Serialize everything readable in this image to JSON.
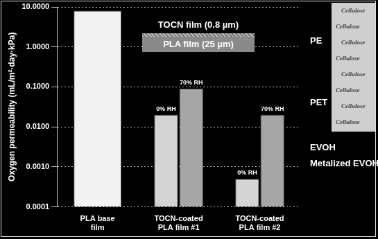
{
  "chart_data": {
    "type": "bar",
    "y_label": "Oxygen permeability (mL/m²·day·kPa)",
    "categories": [
      [
        "PLA base",
        "film"
      ],
      [
        "TOCN-coated",
        "PLA film #1"
      ],
      [
        "TOCN-coated",
        "PLA film #2"
      ]
    ],
    "series": [
      {
        "color": "#f2f2f2",
        "values": [
          8,
          null,
          null
        ]
      },
      {
        "name": "0% RH",
        "color": "#d4d4d4",
        "values": [
          null,
          0.02,
          0.0005
        ]
      },
      {
        "name": "70% RH",
        "color": "#a6a6a6",
        "values": [
          null,
          0.09,
          0.02
        ]
      }
    ],
    "log": "y",
    "ylim": [
      0.0001,
      10
    ],
    "yticks": [
      {
        "value": 0.0001,
        "label": "0.0001"
      },
      {
        "value": 0.001,
        "label": "0.0010"
      },
      {
        "value": 0.01,
        "label": "0.0100"
      },
      {
        "value": 0.1,
        "label": "0.1000"
      },
      {
        "value": 1,
        "label": "1.0000"
      },
      {
        "value": 10,
        "label": "10.0000"
      }
    ],
    "grid": true,
    "legend": false,
    "inset": [
      "TOCN film (0.8 µm)",
      "PLA film (25 µm)"
    ],
    "annotations": [
      {
        "text": "PE",
        "value": 1.4
      },
      {
        "text": "PET",
        "value": 0.04
      },
      {
        "text": "EVOH",
        "value": 0.003
      },
      {
        "text": "Metalized EVOH",
        "value": 0.0012
      }
    ],
    "image_text": "Cellulose"
  }
}
